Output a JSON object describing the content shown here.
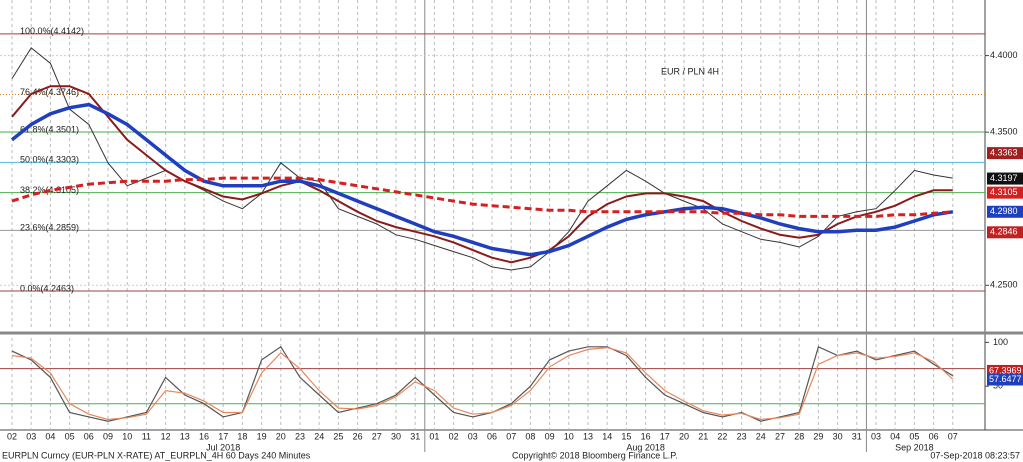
{
  "chart_data": {
    "type": "line",
    "title": "EUR / PLN 4H",
    "title_color": "#c8102e",
    "categories": [
      "02",
      "03",
      "04",
      "05",
      "06",
      "09",
      "10",
      "11",
      "12",
      "13",
      "16",
      "17",
      "18",
      "19",
      "20",
      "23",
      "24",
      "25",
      "26",
      "27",
      "30",
      "31",
      "01",
      "02",
      "03",
      "06",
      "07",
      "08",
      "09",
      "10",
      "13",
      "14",
      "15",
      "16",
      "17",
      "20",
      "21",
      "22",
      "23",
      "24",
      "27",
      "28",
      "29",
      "30",
      "31",
      "03",
      "04",
      "05",
      "06",
      "07"
    ],
    "months": [
      "Jul 2018",
      "Aug 2018",
      "Sep 2018"
    ],
    "ylim": [
      4.2208,
      4.435
    ],
    "yticks": [
      {
        "value": 4.4,
        "label": "4.4000"
      },
      {
        "value": 4.35,
        "label": "4.3500"
      },
      {
        "value": 4.25,
        "label": "4.2500"
      }
    ],
    "grid": true,
    "series": [
      {
        "color": "#333333",
        "width": 1,
        "dash": false,
        "values": [
          4.385,
          4.405,
          4.395,
          4.365,
          4.355,
          4.33,
          4.315,
          4.32,
          4.325,
          4.318,
          4.312,
          4.305,
          4.3,
          4.31,
          4.33,
          4.32,
          4.318,
          4.3,
          4.295,
          4.29,
          4.283,
          4.28,
          4.276,
          4.272,
          4.268,
          4.262,
          4.26,
          4.262,
          4.272,
          4.285,
          4.305,
          4.315,
          4.325,
          4.318,
          4.31,
          4.305,
          4.3,
          4.29,
          4.285,
          4.28,
          4.278,
          4.275,
          4.282,
          4.295,
          4.298,
          4.3,
          4.312,
          4.325,
          4.322,
          4.32
        ]
      },
      {
        "color": "#8b1a1a",
        "width": 2,
        "dash": false,
        "values": [
          4.36,
          4.375,
          4.38,
          4.38,
          4.375,
          4.36,
          4.345,
          4.335,
          4.325,
          4.318,
          4.313,
          4.308,
          4.306,
          4.31,
          4.315,
          4.318,
          4.312,
          4.305,
          4.298,
          4.292,
          4.288,
          4.285,
          4.282,
          4.278,
          4.273,
          4.268,
          4.265,
          4.268,
          4.273,
          4.282,
          4.295,
          4.303,
          4.308,
          4.31,
          4.31,
          4.308,
          4.305,
          4.298,
          4.292,
          4.287,
          4.283,
          4.281,
          4.283,
          4.29,
          4.295,
          4.298,
          4.302,
          4.308,
          4.312,
          4.312
        ]
      },
      {
        "color": "#1f3fbf",
        "width": 3.5,
        "dash": false,
        "values": [
          4.345,
          4.355,
          4.362,
          4.366,
          4.368,
          4.362,
          4.355,
          4.345,
          4.335,
          4.325,
          4.318,
          4.315,
          4.315,
          4.315,
          4.318,
          4.318,
          4.315,
          4.31,
          4.305,
          4.3,
          4.295,
          4.29,
          4.285,
          4.282,
          4.278,
          4.274,
          4.272,
          4.27,
          4.272,
          4.276,
          4.282,
          4.288,
          4.293,
          4.296,
          4.298,
          4.3,
          4.301,
          4.3,
          4.297,
          4.294,
          4.29,
          4.287,
          4.285,
          4.285,
          4.286,
          4.286,
          4.288,
          4.292,
          4.296,
          4.298
        ]
      },
      {
        "color": "#d42020",
        "width": 3,
        "dash": true,
        "values": [
          4.305,
          4.309,
          4.312,
          4.314,
          4.316,
          4.317,
          4.318,
          4.318,
          4.318,
          4.319,
          4.319,
          4.32,
          4.32,
          4.32,
          4.32,
          4.32,
          4.319,
          4.317,
          4.315,
          4.313,
          4.311,
          4.309,
          4.307,
          4.305,
          4.303,
          4.302,
          4.301,
          4.3,
          4.299,
          4.299,
          4.298,
          4.298,
          4.298,
          4.298,
          4.298,
          4.298,
          4.298,
          4.297,
          4.297,
          4.296,
          4.296,
          4.295,
          4.295,
          4.295,
          4.295,
          4.295,
          4.296,
          4.296,
          4.297,
          4.298
        ]
      }
    ],
    "levels": [
      {
        "value": 4.4142,
        "label": "100.0%(4.4142)",
        "color": "#a04040"
      },
      {
        "value": 4.3746,
        "label": "76.4%(4.3746)",
        "color": "#d08020"
      },
      {
        "value": 4.3501,
        "label": "61.8%(4.3501)",
        "color": "#4caf50"
      },
      {
        "value": 4.3303,
        "label": "50.0%(4.3303)",
        "color": "#4fb8d8"
      },
      {
        "value": 4.3105,
        "label": "38.2%(4.3105)",
        "color": "#4caf50"
      },
      {
        "value": 4.2859,
        "label": "23.6%(4.2859)",
        "color": "#999999"
      },
      {
        "value": 4.2463,
        "label": "0.0%(4.2463)",
        "color": "#a04040"
      }
    ],
    "price_tags": [
      {
        "value": 4.3363,
        "label": "4.3363",
        "color": "#a02020"
      },
      {
        "value": 4.3197,
        "label": "4.3197",
        "color": "#111111"
      },
      {
        "value": 4.3105,
        "label": "4.3105",
        "color": "#d42020"
      },
      {
        "value": 4.298,
        "label": "4.2980",
        "color": "#1f3fbf"
      },
      {
        "value": 4.2846,
        "label": "4.2846",
        "color": "#c02020"
      }
    ],
    "oscillator": {
      "ylim": [
        0,
        105
      ],
      "yticks": [
        100,
        50
      ],
      "levels": [
        {
          "value": 70,
          "color": "#a04040"
        },
        {
          "value": 30,
          "color": "#4caf50"
        }
      ],
      "series": [
        {
          "color": "#555555",
          "values": [
            90,
            80,
            60,
            20,
            15,
            10,
            15,
            20,
            60,
            40,
            30,
            15,
            20,
            80,
            95,
            60,
            40,
            20,
            25,
            30,
            40,
            60,
            40,
            20,
            15,
            20,
            30,
            50,
            80,
            90,
            95,
            95,
            85,
            60,
            40,
            30,
            20,
            15,
            20,
            10,
            15,
            20,
            95,
            85,
            90,
            80,
            85,
            90,
            75,
            62
          ]
        },
        {
          "color": "#e8875a",
          "values": [
            85,
            82,
            65,
            30,
            18,
            12,
            14,
            18,
            45,
            42,
            33,
            20,
            20,
            65,
            88,
            70,
            45,
            25,
            24,
            28,
            38,
            55,
            45,
            25,
            18,
            20,
            28,
            45,
            72,
            85,
            92,
            94,
            88,
            65,
            45,
            33,
            22,
            17,
            19,
            12,
            14,
            18,
            75,
            85,
            88,
            82,
            84,
            88,
            78,
            58
          ]
        }
      ],
      "tags": [
        {
          "value": 67.3969,
          "label": "67.3969",
          "color": "#c02020"
        },
        {
          "value": 57.6477,
          "label": "57.6477",
          "color": "#1f3fbf"
        }
      ]
    },
    "footer": {
      "left": "EURPLN Curncy (EUR-PLN X-RATE) AT_EURPLN_4H 60 Days 240 Minutes",
      "center": "Copyright© 2018 Bloomberg Finance L.P.",
      "right": "07-Sep-2018 08:23:57"
    }
  }
}
